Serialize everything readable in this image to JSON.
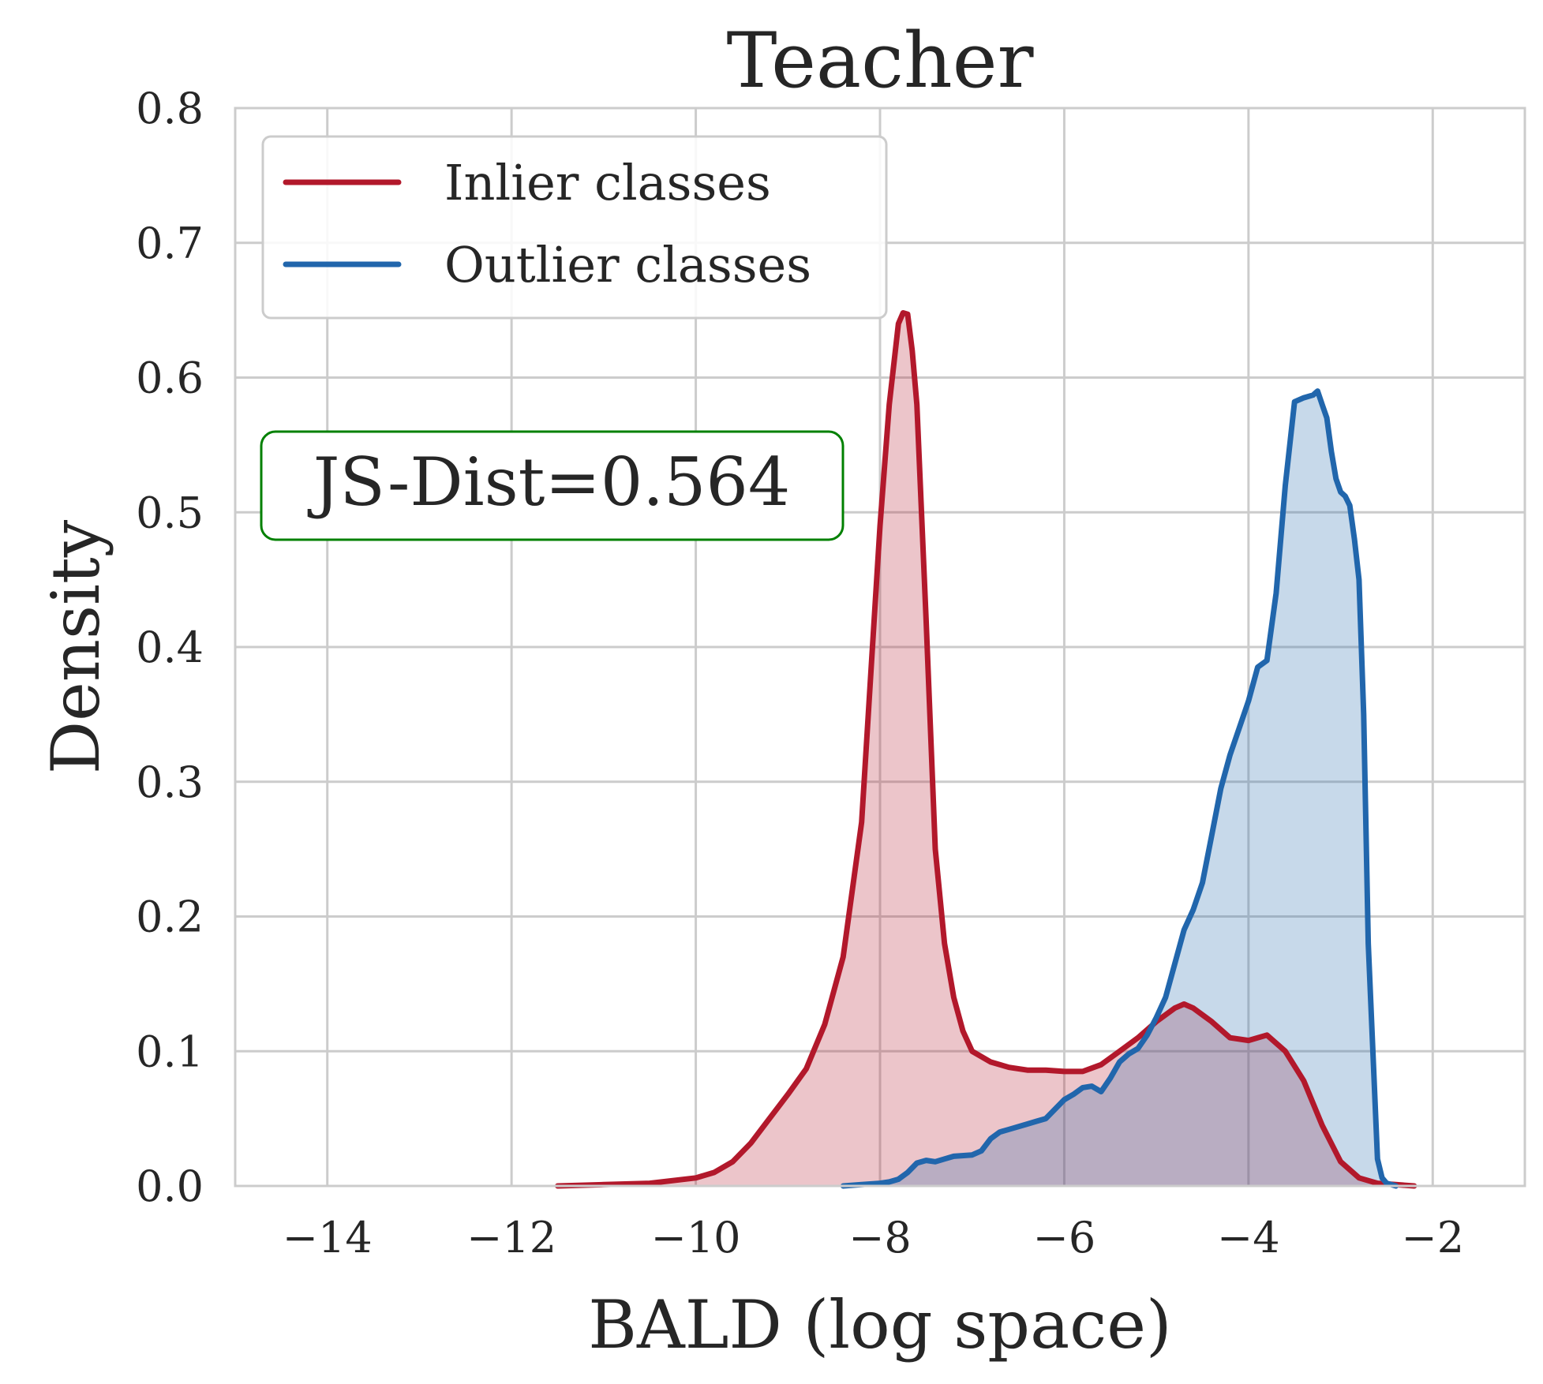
{
  "chart_data": {
    "type": "area",
    "title": "Teacher",
    "xlabel": "BALD (log space)",
    "ylabel": "Density",
    "xlim": [
      -15,
      -1
    ],
    "ylim": [
      0,
      0.8
    ],
    "xticks": [
      -14,
      -12,
      -10,
      -8,
      -6,
      -4,
      -2
    ],
    "xtick_labels": [
      "−14",
      "−12",
      "−10",
      "−8",
      "−6",
      "−4",
      "−2"
    ],
    "yticks": [
      0.0,
      0.1,
      0.2,
      0.3,
      0.4,
      0.5,
      0.6,
      0.7,
      0.8
    ],
    "ytick_labels": [
      "0.0",
      "0.1",
      "0.2",
      "0.3",
      "0.4",
      "0.5",
      "0.6",
      "0.7",
      "0.8"
    ],
    "grid": true,
    "legend_position": "top-left",
    "annotation": "JS-Dist=0.564",
    "annotation_color": "#008000",
    "series": [
      {
        "name": "Inlier classes",
        "color": "#b2182b",
        "x": [
          -11.5,
          -11.0,
          -10.5,
          -10.0,
          -9.8,
          -9.6,
          -9.4,
          -9.2,
          -9.0,
          -8.8,
          -8.6,
          -8.4,
          -8.2,
          -8.1,
          -8.0,
          -7.9,
          -7.8,
          -7.75,
          -7.7,
          -7.65,
          -7.6,
          -7.5,
          -7.4,
          -7.3,
          -7.2,
          -7.1,
          -7.0,
          -6.8,
          -6.6,
          -6.4,
          -6.2,
          -6.0,
          -5.8,
          -5.6,
          -5.4,
          -5.2,
          -5.0,
          -4.8,
          -4.7,
          -4.6,
          -4.4,
          -4.2,
          -4.0,
          -3.8,
          -3.6,
          -3.4,
          -3.2,
          -3.0,
          -2.8,
          -2.6,
          -2.4,
          -2.2
        ],
        "y": [
          0.0,
          0.001,
          0.002,
          0.006,
          0.01,
          0.018,
          0.032,
          0.05,
          0.068,
          0.087,
          0.12,
          0.17,
          0.27,
          0.38,
          0.49,
          0.58,
          0.64,
          0.648,
          0.647,
          0.62,
          0.58,
          0.42,
          0.25,
          0.18,
          0.14,
          0.115,
          0.1,
          0.092,
          0.088,
          0.086,
          0.086,
          0.085,
          0.085,
          0.09,
          0.1,
          0.11,
          0.122,
          0.132,
          0.135,
          0.132,
          0.122,
          0.11,
          0.108,
          0.112,
          0.1,
          0.078,
          0.045,
          0.018,
          0.006,
          0.002,
          0.001,
          0.0
        ]
      },
      {
        "name": "Outlier classes",
        "color": "#2166ac",
        "x": [
          -8.4,
          -8.2,
          -8.0,
          -7.9,
          -7.8,
          -7.7,
          -7.6,
          -7.5,
          -7.4,
          -7.3,
          -7.2,
          -7.0,
          -6.9,
          -6.8,
          -6.7,
          -6.6,
          -6.4,
          -6.3,
          -6.2,
          -6.0,
          -5.9,
          -5.8,
          -5.7,
          -5.6,
          -5.5,
          -5.4,
          -5.3,
          -5.2,
          -5.1,
          -5.0,
          -4.9,
          -4.8,
          -4.7,
          -4.6,
          -4.5,
          -4.4,
          -4.3,
          -4.2,
          -4.1,
          -4.0,
          -3.9,
          -3.8,
          -3.7,
          -3.6,
          -3.5,
          -3.4,
          -3.3,
          -3.25,
          -3.2,
          -3.15,
          -3.1,
          -3.05,
          -3.0,
          -2.95,
          -2.9,
          -2.85,
          -2.8,
          -2.75,
          -2.7,
          -2.6,
          -2.55,
          -2.5,
          -2.45,
          -2.4
        ],
        "y": [
          0.0,
          0.001,
          0.002,
          0.003,
          0.005,
          0.01,
          0.017,
          0.019,
          0.018,
          0.02,
          0.022,
          0.023,
          0.026,
          0.035,
          0.04,
          0.042,
          0.046,
          0.048,
          0.05,
          0.064,
          0.068,
          0.073,
          0.074,
          0.07,
          0.08,
          0.092,
          0.098,
          0.102,
          0.112,
          0.125,
          0.14,
          0.165,
          0.19,
          0.205,
          0.225,
          0.26,
          0.295,
          0.32,
          0.34,
          0.36,
          0.385,
          0.39,
          0.44,
          0.52,
          0.582,
          0.585,
          0.587,
          0.59,
          0.58,
          0.57,
          0.545,
          0.525,
          0.515,
          0.512,
          0.505,
          0.48,
          0.45,
          0.35,
          0.18,
          0.02,
          0.006,
          0.002,
          0.001,
          0.0
        ]
      }
    ]
  }
}
